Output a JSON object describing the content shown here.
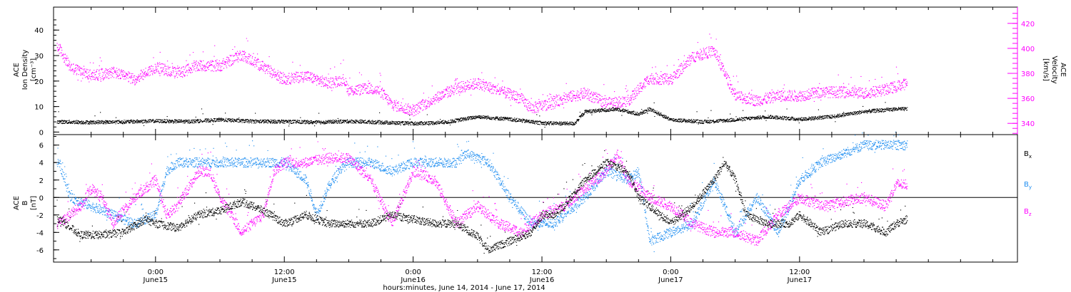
{
  "chart_data": [
    {
      "type": "scatter",
      "panel": "ion-density-and-velocity",
      "ylabel_left": [
        "ACE",
        "Ion Density",
        "[cm⁻³]"
      ],
      "ylabel_right": [
        "ACE",
        "Velocity",
        "[km/s]"
      ],
      "ylim_left": [
        -1,
        49
      ],
      "ylim_right": [
        331,
        433
      ],
      "yticks_left": [
        0,
        10,
        20,
        30,
        40
      ],
      "yticks_right": [
        340,
        360,
        380,
        400,
        420
      ],
      "series": [
        {
          "axis": "left",
          "color": "#000000",
          "anchors": [
            [
              -9,
              4
            ],
            [
              -6,
              3.8
            ],
            [
              -3,
              4
            ],
            [
              0,
              4.3
            ],
            [
              3,
              4.1
            ],
            [
              6,
              4.8
            ],
            [
              9,
              4.2
            ],
            [
              12,
              4.1
            ],
            [
              15,
              3.8
            ],
            [
              18,
              4.2
            ],
            [
              21,
              3.8
            ],
            [
              24,
              3.3
            ],
            [
              27,
              3.8
            ],
            [
              30,
              6
            ],
            [
              33,
              5
            ],
            [
              36,
              3.5
            ],
            [
              39,
              3.3
            ],
            [
              40,
              8
            ],
            [
              43,
              9
            ],
            [
              45,
              7
            ],
            [
              46,
              9
            ],
            [
              48,
              4.8
            ],
            [
              51,
              4
            ],
            [
              54,
              4.8
            ],
            [
              57,
              6
            ],
            [
              60,
              5
            ],
            [
              63,
              6
            ],
            [
              66,
              8
            ],
            [
              69,
              9
            ],
            [
              70,
              9
            ]
          ]
        },
        {
          "axis": "right",
          "color": "#ff00ff",
          "anchors": [
            [
              -9,
              400
            ],
            [
              -8,
              385
            ],
            [
              -6,
              378
            ],
            [
              -4,
              381
            ],
            [
              -2,
              375
            ],
            [
              0,
              385
            ],
            [
              2,
              380
            ],
            [
              4,
              386
            ],
            [
              6,
              386
            ],
            [
              8,
              395
            ],
            [
              10,
              385
            ],
            [
              12,
              375
            ],
            [
              14,
              378
            ],
            [
              16,
              372
            ],
            [
              17.5,
              375
            ],
            [
              18,
              366
            ],
            [
              20,
              368
            ],
            [
              21,
              365
            ],
            [
              22,
              355
            ],
            [
              24,
              350
            ],
            [
              26,
              360
            ],
            [
              28,
              368
            ],
            [
              30,
              372
            ],
            [
              32,
              366
            ],
            [
              34,
              360
            ],
            [
              35,
              352
            ],
            [
              37,
              356
            ],
            [
              38,
              360
            ],
            [
              40,
              364
            ],
            [
              42,
              356
            ],
            [
              44,
              358
            ],
            [
              46,
              376
            ],
            [
              48,
              375
            ],
            [
              50,
              393
            ],
            [
              52,
              398
            ],
            [
              54,
              362
            ],
            [
              56,
              358
            ],
            [
              58,
              362
            ],
            [
              60,
              362
            ],
            [
              62,
              365
            ],
            [
              64,
              365
            ],
            [
              66,
              364
            ],
            [
              68,
              367
            ],
            [
              70,
              372
            ]
          ]
        }
      ]
    },
    {
      "type": "scatter",
      "panel": "magnetic-field",
      "ylabel_left": [
        "ACE",
        "B",
        "[nT]"
      ],
      "ylim": [
        -7.4,
        7.2
      ],
      "yticks": [
        -6,
        -4,
        -2,
        0,
        2,
        4,
        6
      ],
      "zero_line": true,
      "legend": [
        {
          "label": "B",
          "sub": "x",
          "color": "#000000"
        },
        {
          "label": "B",
          "sub": "y",
          "color": "#1f8ef1"
        },
        {
          "label": "B",
          "sub": "z",
          "color": "#ff00ff"
        }
      ],
      "series": [
        {
          "name": "Bx",
          "color": "#000000",
          "anchors": [
            [
              -9,
              -2.5
            ],
            [
              -7,
              -4.3
            ],
            [
              -5,
              -4.3
            ],
            [
              -3,
              -4
            ],
            [
              -1,
              -2.5
            ],
            [
              0,
              -3
            ],
            [
              2,
              -3.5
            ],
            [
              4,
              -2
            ],
            [
              6,
              -1.5
            ],
            [
              8,
              -0.5
            ],
            [
              10,
              -1.5
            ],
            [
              12,
              -3
            ],
            [
              14,
              -2
            ],
            [
              16,
              -3
            ],
            [
              18,
              -3
            ],
            [
              20,
              -3
            ],
            [
              22,
              -2
            ],
            [
              24,
              -2.5
            ],
            [
              26,
              -3
            ],
            [
              28,
              -3
            ],
            [
              30,
              -4.5
            ],
            [
              31,
              -6
            ],
            [
              33,
              -5
            ],
            [
              35,
              -4
            ],
            [
              36,
              -2
            ],
            [
              37,
              -2
            ],
            [
              38,
              -1
            ],
            [
              40,
              2
            ],
            [
              42,
              4
            ],
            [
              44,
              3
            ],
            [
              45,
              0
            ],
            [
              46,
              -1
            ],
            [
              48,
              -3
            ],
            [
              50,
              -1
            ],
            [
              52,
              2
            ],
            [
              53,
              4
            ],
            [
              54,
              2
            ],
            [
              55,
              -2
            ],
            [
              57,
              -3
            ],
            [
              59,
              -3
            ],
            [
              60,
              -2
            ],
            [
              62,
              -4
            ],
            [
              64,
              -3
            ],
            [
              66,
              -3
            ],
            [
              68,
              -4
            ],
            [
              69,
              -3
            ],
            [
              70,
              -2.5
            ]
          ]
        },
        {
          "name": "By",
          "color": "#1f8ef1",
          "anchors": [
            [
              -9,
              4
            ],
            [
              -8,
              0
            ],
            [
              -6,
              -1
            ],
            [
              -4,
              -2
            ],
            [
              -2,
              -3
            ],
            [
              0,
              -2
            ],
            [
              1,
              3
            ],
            [
              2,
              4
            ],
            [
              4,
              4
            ],
            [
              6,
              4
            ],
            [
              8,
              4
            ],
            [
              10,
              4
            ],
            [
              12,
              4
            ],
            [
              14,
              2
            ],
            [
              15,
              -2
            ],
            [
              16,
              1
            ],
            [
              17,
              3
            ],
            [
              18,
              4
            ],
            [
              20,
              4
            ],
            [
              22,
              3
            ],
            [
              24,
              4
            ],
            [
              26,
              4
            ],
            [
              28,
              4
            ],
            [
              29,
              5
            ],
            [
              31,
              4
            ],
            [
              33,
              0
            ],
            [
              35,
              -3
            ],
            [
              37,
              -3
            ],
            [
              38,
              -2
            ],
            [
              40,
              0
            ],
            [
              42,
              3
            ],
            [
              44,
              2
            ],
            [
              45,
              3
            ],
            [
              46,
              -5
            ],
            [
              48,
              -4
            ],
            [
              50,
              -3
            ],
            [
              52,
              2
            ],
            [
              54,
              -4
            ],
            [
              56,
              0
            ],
            [
              58,
              -4
            ],
            [
              60,
              2
            ],
            [
              62,
              4
            ],
            [
              64,
              5
            ],
            [
              66,
              6
            ],
            [
              68,
              6
            ],
            [
              70,
              6
            ]
          ]
        },
        {
          "name": "Bz",
          "color": "#ff00ff",
          "anchors": [
            [
              -9,
              -3
            ],
            [
              -7,
              -1
            ],
            [
              -6,
              1
            ],
            [
              -5,
              0
            ],
            [
              -4,
              -3
            ],
            [
              -2,
              0
            ],
            [
              0,
              2
            ],
            [
              1,
              -2
            ],
            [
              2,
              -1
            ],
            [
              4,
              3
            ],
            [
              5,
              3
            ],
            [
              6,
              0
            ],
            [
              8,
              -4
            ],
            [
              9,
              -3
            ],
            [
              10,
              -2
            ],
            [
              11,
              3
            ],
            [
              12,
              4
            ],
            [
              14,
              4
            ],
            [
              16,
              4.5
            ],
            [
              18,
              4.5
            ],
            [
              20,
              2
            ],
            [
              22,
              -3
            ],
            [
              24,
              3
            ],
            [
              26,
              2
            ],
            [
              28,
              -3
            ],
            [
              30,
              -1
            ],
            [
              32,
              -3
            ],
            [
              34,
              -4
            ],
            [
              36,
              -2
            ],
            [
              38,
              -1
            ],
            [
              40,
              1
            ],
            [
              42,
              3
            ],
            [
              43,
              5
            ],
            [
              44,
              2
            ],
            [
              46,
              0
            ],
            [
              48,
              -1
            ],
            [
              50,
              -3
            ],
            [
              52,
              -4
            ],
            [
              54,
              -4
            ],
            [
              56,
              -5
            ],
            [
              58,
              -2
            ],
            [
              60,
              0
            ],
            [
              62,
              -1
            ],
            [
              64,
              -0.5
            ],
            [
              66,
              0
            ],
            [
              68,
              -1
            ],
            [
              69,
              1.5
            ],
            [
              70,
              1.5
            ]
          ]
        }
      ]
    }
  ],
  "x_axis": {
    "ticks": [
      {
        "t": 0,
        "time": "0:00",
        "date": "June15"
      },
      {
        "t": 12,
        "time": "12:00",
        "date": "June15"
      },
      {
        "t": 24,
        "time": "0:00",
        "date": "June16"
      },
      {
        "t": 36,
        "time": "12:00",
        "date": "June16"
      },
      {
        "t": 48,
        "time": "0:00",
        "date": "June17"
      },
      {
        "t": 60,
        "time": "12:00",
        "date": "June17"
      }
    ],
    "xlim": [
      -9.5,
      80.3
    ],
    "xlabel": "hours:minutes, June 14, 2014 - June 17, 2014"
  }
}
